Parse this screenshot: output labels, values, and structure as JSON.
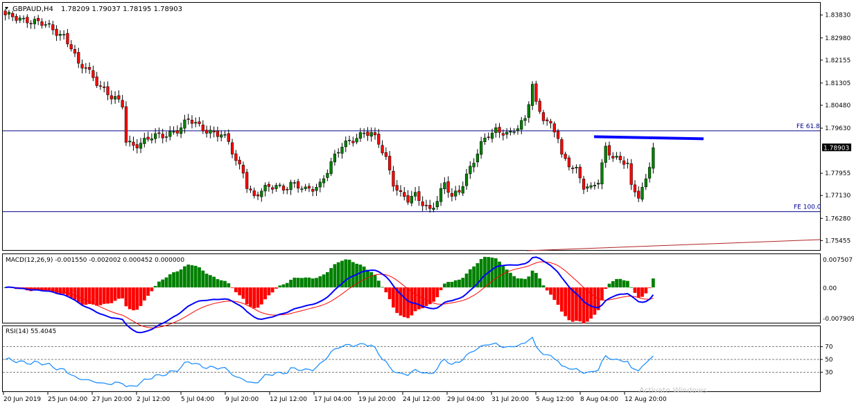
{
  "symbol_header": {
    "symbol": "GBPAUD,H4",
    "ohlc": "1.78209 1.79037 1.78195 1.78903",
    "menu_icon": "triangle-down-icon"
  },
  "colors": {
    "bull": "#008000",
    "bear": "#ff0000",
    "fe_line": "#00008b",
    "resistance": "#0000ff",
    "macd_line": "#0000ff",
    "signal_line": "#ff0000",
    "rsi_line": "#1e90ff",
    "trend_line": "#b22222",
    "price_tag_bg": "#000000"
  },
  "chart_data": [
    {
      "type": "candlestick",
      "title": "GBPAUD,H4",
      "ylim": [
        1.7513,
        1.8426
      ],
      "y_ticks": [
        "1.83830",
        "1.82980",
        "1.82155",
        "1.81305",
        "1.80480",
        "1.79630",
        "1.78903",
        "1.77955",
        "1.77130",
        "1.76280",
        "1.75455"
      ],
      "current_price": "1.78903",
      "x_labels": [
        "20 Jun 2019",
        "25 Jun 04:00",
        "27 Jun 20:00",
        "2 Jul 12:00",
        "5 Jul 04:00",
        "9 Jul 20:00",
        "12 Jul 12:00",
        "17 Jul 04:00",
        "19 Jul 20:00",
        "24 Jul 12:00",
        "29 Jul 04:00",
        "31 Jul 20:00",
        "5 Aug 12:00",
        "8 Aug 04:00",
        "12 Aug 20:00"
      ],
      "close_path": [
        [
          0,
          1.8375
        ],
        [
          6,
          1.837
        ],
        [
          12,
          1.8335
        ],
        [
          16,
          1.831
        ],
        [
          18,
          1.8265
        ],
        [
          20,
          1.819
        ],
        [
          22,
          1.8185
        ],
        [
          26,
          1.8125
        ],
        [
          29,
          1.8075
        ],
        [
          32,
          1.8045
        ],
        [
          33,
          1.7915
        ],
        [
          35,
          1.7905
        ],
        [
          38,
          1.7915
        ],
        [
          40,
          1.7925
        ],
        [
          43,
          1.7935
        ],
        [
          45,
          1.795
        ],
        [
          48,
          1.7965
        ],
        [
          50,
          1.799
        ],
        [
          52,
          1.7975
        ],
        [
          54,
          1.7965
        ],
        [
          56,
          1.7955
        ],
        [
          59,
          1.7935
        ],
        [
          61,
          1.7905
        ],
        [
          63,
          1.784
        ],
        [
          65,
          1.781
        ],
        [
          66,
          1.7755
        ],
        [
          68,
          1.7705
        ],
        [
          70,
          1.7725
        ],
        [
          72,
          1.774
        ],
        [
          74,
          1.7755
        ],
        [
          76,
          1.7745
        ],
        [
          78,
          1.7755
        ],
        [
          80,
          1.774
        ],
        [
          82,
          1.773
        ],
        [
          84,
          1.7745
        ],
        [
          86,
          1.776
        ],
        [
          88,
          1.7805
        ],
        [
          90,
          1.785
        ],
        [
          92,
          1.7895
        ],
        [
          94,
          1.792
        ],
        [
          96,
          1.7935
        ],
        [
          98,
          1.7945
        ],
        [
          100,
          1.7935
        ],
        [
          102,
          1.7905
        ],
        [
          104,
          1.7855
        ],
        [
          106,
          1.7765
        ],
        [
          108,
          1.7715
        ],
        [
          110,
          1.769
        ],
        [
          112,
          1.771
        ],
        [
          114,
          1.769
        ],
        [
          116,
          1.7665
        ],
        [
          118,
          1.7695
        ],
        [
          120,
          1.775
        ],
        [
          122,
          1.7705
        ],
        [
          124,
          1.7735
        ],
        [
          126,
          1.7795
        ],
        [
          128,
          1.784
        ],
        [
          130,
          1.7895
        ],
        [
          132,
          1.7935
        ],
        [
          134,
          1.796
        ],
        [
          136,
          1.7955
        ],
        [
          138,
          1.794
        ],
        [
          140,
          1.796
        ],
        [
          142,
          1.799
        ],
        [
          144,
          1.8135
        ],
        [
          145,
          1.806
        ],
        [
          147,
          1.8005
        ],
        [
          149,
          1.7965
        ],
        [
          151,
          1.7925
        ],
        [
          152,
          1.7855
        ],
        [
          154,
          1.7835
        ],
        [
          156,
          1.7815
        ],
        [
          158,
          1.7745
        ],
        [
          160,
          1.773
        ],
        [
          162,
          1.7765
        ],
        [
          164,
          1.7895
        ],
        [
          166,
          1.7865
        ],
        [
          168,
          1.784
        ],
        [
          170,
          1.7825
        ],
        [
          171,
          1.7735
        ],
        [
          173,
          1.7715
        ],
        [
          175,
          1.7775
        ],
        [
          177,
          1.78903
        ]
      ],
      "annotations": [
        {
          "label": "FE 61.8",
          "price": 1.7953
        },
        {
          "label": "FE 100.0",
          "price": 1.7653
        },
        {
          "label": "resistance",
          "price": 1.7926
        }
      ]
    },
    {
      "type": "histogram+line",
      "title": "MACD(12,26,9) -0.001550 -0.002002 0.000452 0.000000",
      "ylim": [
        -0.0085,
        0.0085
      ],
      "y_ticks": [
        "0.007507",
        "0.00",
        "-0.007909"
      ]
    },
    {
      "type": "line",
      "title": "RSI(14) 55.4045",
      "ylim": [
        0,
        100
      ],
      "y_ticks": [
        "70",
        "50",
        "30"
      ],
      "levels": [
        70,
        50,
        30
      ]
    }
  ],
  "watermark": "Activate Windows\nGo to"
}
